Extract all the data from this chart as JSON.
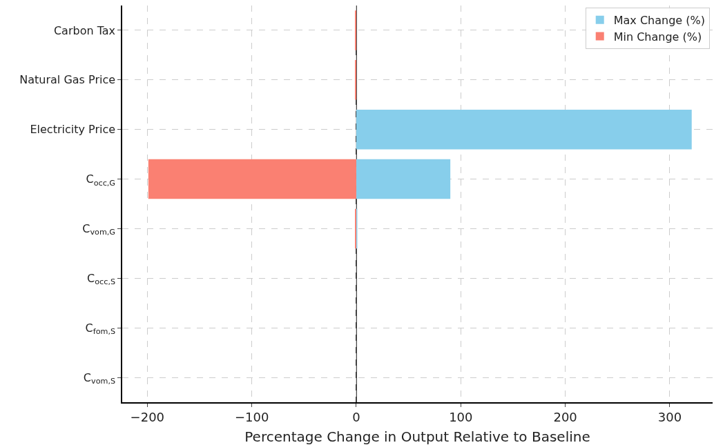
{
  "chart_data": {
    "type": "bar",
    "orientation": "horizontal",
    "xlabel": "Percentage Change in Output Relative to Baseline",
    "categories": [
      "Carbon Tax",
      "Natural Gas Price",
      "Electricity Price",
      "C$_{occ,G}$",
      "C$_{vom,G}$",
      "C$_{occ,S}$",
      "C$_{fom,S}$",
      "C$_{vom,S}$"
    ],
    "series": [
      {
        "name": "Max Change (%)",
        "color": "#87ceeb",
        "values": [
          0,
          0,
          321,
          90,
          1,
          0,
          0,
          0
        ]
      },
      {
        "name": "Min Change (%)",
        "color": "#fa8072",
        "values": [
          -1,
          -1,
          0,
          -199,
          -1,
          0,
          0,
          0
        ]
      }
    ],
    "xlim": [
      -224,
      341
    ],
    "xticks": [
      -200,
      -100,
      0,
      100,
      200,
      300
    ],
    "ref_lines": [
      {
        "axis": "x",
        "value": 0,
        "color": "#000000"
      }
    ],
    "grid": true,
    "legend": "top right"
  }
}
